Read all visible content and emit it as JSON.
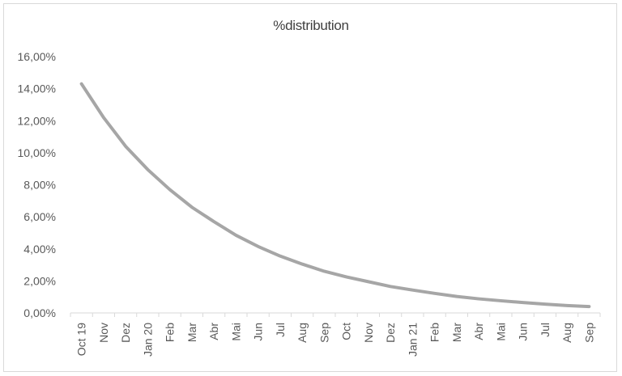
{
  "chart_data": {
    "type": "line",
    "title": "%distribution",
    "categories": [
      "Oct 19",
      "Nov",
      "Dez",
      "Jan 20",
      "Feb",
      "Mar",
      "Abr",
      "Mai",
      "Jun",
      "Jul",
      "Aug",
      "Sep",
      "Oct",
      "Nov",
      "Dez",
      "Jan 21",
      "Feb",
      "Mar",
      "Abr",
      "Mai",
      "Jun",
      "Jul",
      "Aug",
      "Sep"
    ],
    "series": [
      {
        "values": [
          14.3,
          12.2,
          10.4,
          8.95,
          7.7,
          6.6,
          5.7,
          4.85,
          4.15,
          3.55,
          3.05,
          2.6,
          2.25,
          1.95,
          1.65,
          1.43,
          1.22,
          1.03,
          0.88,
          0.76,
          0.65,
          0.55,
          0.46,
          0.4
        ]
      }
    ],
    "yticks": [
      "0,00%",
      "2,00%",
      "4,00%",
      "6,00%",
      "8,00%",
      "10,00%",
      "12,00%",
      "14,00%",
      "16,00%"
    ],
    "ylim": [
      0,
      16
    ],
    "grid": false,
    "line_color": "#a6a6a6",
    "axis_color": "#d9d9d9"
  }
}
